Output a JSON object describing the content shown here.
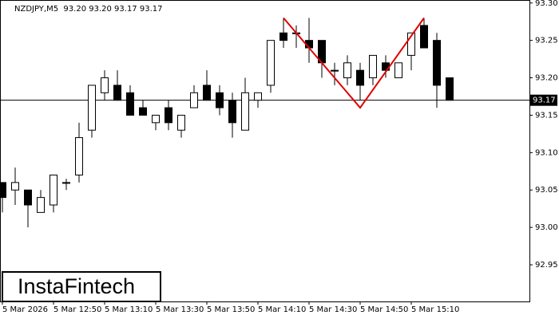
{
  "chart_data": {
    "type": "candlestick",
    "title": "NZDJPY,M5  93.20 93.20 93.17 93.17",
    "logo": "InstaFintech",
    "categories": [
      "5 Mar 2026",
      null,
      null,
      null,
      "5 Mar 12:50",
      null,
      null,
      null,
      "5 Mar 13:10",
      null,
      null,
      null,
      "5 Mar 13:30",
      null,
      null,
      null,
      "5 Mar 13:50",
      null,
      null,
      null,
      "5 Mar 14:10",
      null,
      null,
      null,
      "5 Mar 14:30",
      null,
      null,
      null,
      "5 Mar 14:50",
      null,
      null,
      null,
      "5 Mar 15:10",
      null,
      null,
      null
    ],
    "open": [
      93.06,
      93.05,
      93.05,
      93.02,
      93.03,
      93.06,
      93.07,
      93.13,
      93.18,
      93.19,
      93.18,
      93.16,
      93.14,
      93.16,
      93.13,
      93.16,
      93.19,
      93.18,
      93.17,
      93.13,
      93.17,
      93.19,
      93.26,
      93.26,
      93.25,
      93.25,
      93.21,
      93.2,
      93.21,
      93.2,
      93.22,
      93.2,
      93.23,
      93.27,
      93.25,
      93.2
    ],
    "high": [
      93.06,
      93.08,
      93.05,
      93.05,
      93.07,
      93.065,
      93.14,
      93.19,
      93.21,
      93.21,
      93.19,
      93.17,
      93.15,
      93.17,
      93.15,
      93.19,
      93.21,
      93.19,
      93.18,
      93.2,
      93.18,
      93.25,
      93.28,
      93.27,
      93.28,
      93.25,
      93.22,
      93.23,
      93.22,
      93.23,
      93.23,
      93.22,
      93.26,
      93.28,
      93.26,
      93.2
    ],
    "low": [
      93.02,
      93.03,
      93.0,
      93.02,
      93.02,
      93.05,
      93.06,
      93.12,
      93.17,
      93.17,
      93.15,
      93.15,
      93.13,
      93.13,
      93.12,
      93.16,
      93.17,
      93.15,
      93.12,
      93.13,
      93.16,
      93.18,
      93.24,
      93.24,
      93.22,
      93.2,
      93.19,
      93.19,
      93.17,
      93.19,
      93.2,
      93.2,
      93.21,
      93.24,
      93.16,
      93.17
    ],
    "close": [
      93.04,
      93.06,
      93.03,
      93.04,
      93.07,
      93.06,
      93.12,
      93.19,
      93.2,
      93.17,
      93.15,
      93.15,
      93.15,
      93.14,
      93.15,
      93.18,
      93.17,
      93.16,
      93.14,
      93.18,
      93.18,
      93.25,
      93.25,
      93.26,
      93.24,
      93.22,
      93.21,
      93.22,
      93.19,
      93.23,
      93.21,
      93.22,
      93.26,
      93.24,
      93.19,
      93.17
    ],
    "up_color": "#ffffff",
    "down_color": "#000000",
    "last_price": 93.17,
    "pattern": {
      "color": "#e00000",
      "x": [
        22,
        28,
        33
      ],
      "y": [
        93.28,
        93.16,
        93.28
      ]
    },
    "ylim": [
      92.901,
      93.304
    ],
    "yticks": [
      92.95,
      {
        "value": 93.0,
        "label": "93.00"
      },
      93.05,
      {
        "value": 93.1,
        "label": "93.10"
      },
      93.15,
      {
        "value": 93.2,
        "label": "93.20"
      },
      93.25,
      {
        "value": 93.3,
        "label": "93.30"
      }
    ]
  }
}
